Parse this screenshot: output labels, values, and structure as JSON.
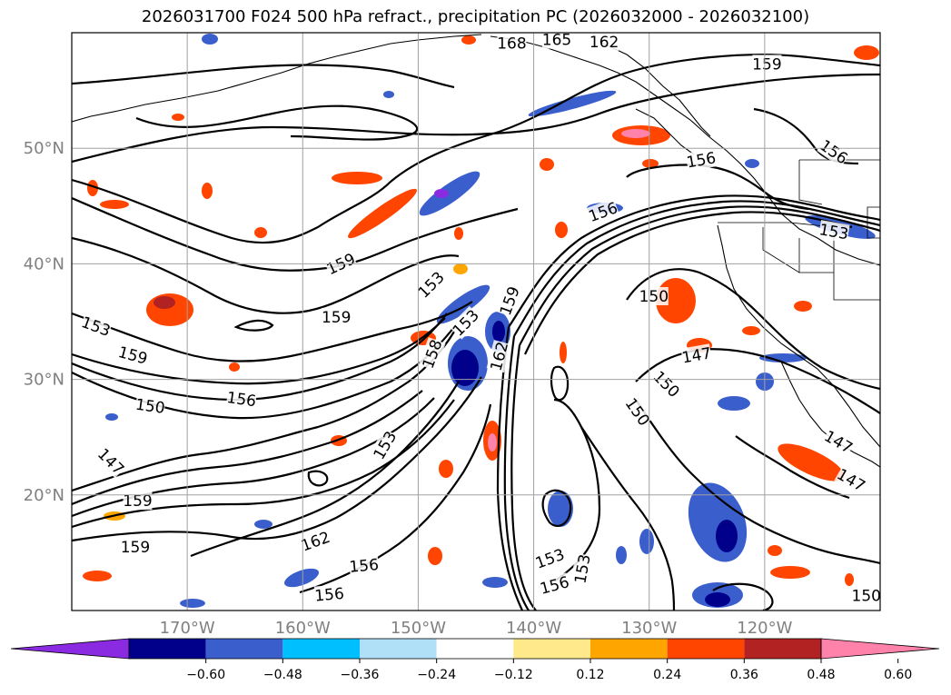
{
  "title": "2026031700 F024 500 hPa refract., precipitation PC (2026032000 - 2026032100)",
  "map": {
    "lat_labels": [
      "50°N",
      "40°N",
      "30°N",
      "20°N"
    ],
    "lon_labels": [
      "170°W",
      "160°W",
      "150°W",
      "140°W",
      "130°W",
      "120°W"
    ],
    "lat_range": [
      10,
      60
    ],
    "lon_range": [
      -180,
      -110
    ],
    "contour_labels": [
      {
        "text": "168",
        "lon": -141.9,
        "lat": 59.1,
        "rot": 0
      },
      {
        "text": "165",
        "lon": -138.0,
        "lat": 59.4,
        "rot": 0
      },
      {
        "text": "162",
        "lon": -133.9,
        "lat": 59.2,
        "rot": 0
      },
      {
        "text": "159",
        "lon": -119.8,
        "lat": 57.3,
        "rot": 0
      },
      {
        "text": "156",
        "lon": -125.5,
        "lat": 49.0,
        "rot": -10
      },
      {
        "text": "156",
        "lon": -114.0,
        "lat": 49.7,
        "rot": 35
      },
      {
        "text": "156",
        "lon": -134.0,
        "lat": 44.5,
        "rot": -20
      },
      {
        "text": "153",
        "lon": -114.0,
        "lat": 42.8,
        "rot": 10
      },
      {
        "text": "159",
        "lon": -156.7,
        "lat": 40.0,
        "rot": -25
      },
      {
        "text": "153",
        "lon": -148.9,
        "lat": 38.2,
        "rot": -45
      },
      {
        "text": "159",
        "lon": -157.1,
        "lat": 35.4,
        "rot": 0
      },
      {
        "text": "153",
        "lon": -145.9,
        "lat": 34.9,
        "rot": -45
      },
      {
        "text": "159",
        "lon": -142.1,
        "lat": 36.8,
        "rot": -70
      },
      {
        "text": "150",
        "lon": -129.6,
        "lat": 37.2,
        "rot": 0
      },
      {
        "text": "153",
        "lon": -177.9,
        "lat": 34.6,
        "rot": 20
      },
      {
        "text": "159",
        "lon": -174.7,
        "lat": 32.1,
        "rot": 15
      },
      {
        "text": "158",
        "lon": -148.8,
        "lat": 32.2,
        "rot": -70
      },
      {
        "text": "162",
        "lon": -143.0,
        "lat": 32.0,
        "rot": -75
      },
      {
        "text": "147",
        "lon": -125.9,
        "lat": 32.1,
        "rot": -10
      },
      {
        "text": "150",
        "lon": -128.5,
        "lat": 29.6,
        "rot": 45
      },
      {
        "text": "156",
        "lon": -165.3,
        "lat": 28.3,
        "rot": 8
      },
      {
        "text": "150",
        "lon": -173.2,
        "lat": 27.7,
        "rot": 8
      },
      {
        "text": "150",
        "lon": -131.0,
        "lat": 27.2,
        "rot": 55
      },
      {
        "text": "147",
        "lon": -113.6,
        "lat": 24.6,
        "rot": 30
      },
      {
        "text": "153",
        "lon": -152.9,
        "lat": 24.3,
        "rot": -60
      },
      {
        "text": "147",
        "lon": -176.6,
        "lat": 22.9,
        "rot": 45
      },
      {
        "text": "147",
        "lon": -112.5,
        "lat": 21.3,
        "rot": 30
      },
      {
        "text": "159",
        "lon": -174.3,
        "lat": 19.5,
        "rot": 0
      },
      {
        "text": "159",
        "lon": -174.5,
        "lat": 15.5,
        "rot": 0
      },
      {
        "text": "162",
        "lon": -158.9,
        "lat": 16.0,
        "rot": -20
      },
      {
        "text": "156",
        "lon": -154.7,
        "lat": 13.9,
        "rot": -5
      },
      {
        "text": "156",
        "lon": -157.7,
        "lat": 11.4,
        "rot": -5
      },
      {
        "text": "153",
        "lon": -138.6,
        "lat": 14.5,
        "rot": -20
      },
      {
        "text": "153",
        "lon": -135.8,
        "lat": 13.6,
        "rot": -80
      },
      {
        "text": "156",
        "lon": -138.2,
        "lat": 12.2,
        "rot": -15
      },
      {
        "text": "150",
        "lon": -111.2,
        "lat": 11.3,
        "rot": 0
      }
    ]
  },
  "colorbar": {
    "ticks": [
      "−0.60",
      "−0.48",
      "−0.36",
      "−0.24",
      "−0.12",
      "0.12",
      "0.24",
      "0.36",
      "0.48",
      "0.60"
    ],
    "colors": [
      "#8a2be2",
      "#00008b",
      "#3a5fcd",
      "#00bfff",
      "#b0e0f8",
      "#ffffff",
      "#ffe98a",
      "#ffa500",
      "#ff4500",
      "#b22222",
      "#ff82ab"
    ],
    "colors_legend": [
      "extend-min purple",
      "navy",
      "royal blue",
      "deep sky blue",
      "light blue",
      "white",
      "light yellow",
      "orange",
      "orange-red",
      "firebrick",
      "extend-max pink"
    ]
  }
}
